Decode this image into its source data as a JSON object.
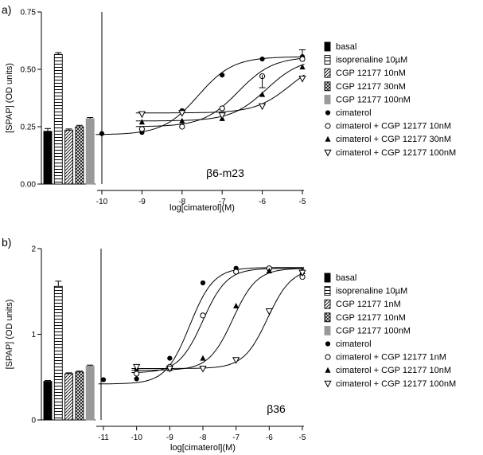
{
  "chart_data": [
    {
      "type": "bar+line",
      "panel_label": "a)",
      "ylabel": "[SPAP] (OD units)",
      "xlabel": "log[cimaterol](M)",
      "annotation": "β6-m23",
      "ylim": [
        0,
        0.75
      ],
      "yticks": [
        "0.00",
        "0.25",
        "0.50",
        "0.75"
      ],
      "xlim": [
        -10,
        -5
      ],
      "xticks": [
        "-10",
        "-9",
        "-8",
        "-7",
        "-6",
        "-5"
      ],
      "bars": [
        {
          "name": "basal",
          "value": 0.23,
          "error": 0.012,
          "pattern": "black"
        },
        {
          "name": "isoprenaline 10µM",
          "value": 0.565,
          "error": 0.008,
          "pattern": "hlines"
        },
        {
          "name": "CGP 12177 10nM",
          "value": 0.235,
          "error": 0.005,
          "pattern": "diag"
        },
        {
          "name": "CGP 12177 30nM",
          "value": 0.25,
          "error": 0.006,
          "pattern": "cross"
        },
        {
          "name": "CGP 12177 100nM",
          "value": 0.285,
          "error": 0.005,
          "pattern": "gray"
        }
      ],
      "series": [
        {
          "name": "cimaterol",
          "marker": "filled-circle",
          "bottom": 0.215,
          "top": 0.555,
          "logEC50": -7.6,
          "hill": 1.0,
          "x": [
            -10,
            -9,
            -8,
            -7,
            -6,
            -5
          ],
          "y": [
            0.22,
            0.225,
            0.32,
            0.475,
            0.545,
            0.555
          ]
        },
        {
          "name": "cimaterol + CGP 12177 10nM",
          "marker": "open-circle",
          "bottom": 0.25,
          "top": 0.555,
          "logEC50": -6.6,
          "hill": 1.0,
          "x": [
            -9,
            -8,
            -7,
            -6,
            -5
          ],
          "y": [
            0.24,
            0.25,
            0.33,
            0.47,
            0.545
          ]
        },
        {
          "name": "cimaterol + CGP 12177 30nM",
          "marker": "filled-triangle",
          "bottom": 0.275,
          "top": 0.55,
          "logEC50": -5.9,
          "hill": 1.0,
          "x": [
            -9,
            -8,
            -7,
            -6,
            -5
          ],
          "y": [
            0.27,
            0.275,
            0.285,
            0.39,
            0.51
          ]
        },
        {
          "name": "cimaterol + CGP 12177 100nM",
          "marker": "open-triangle",
          "bottom": 0.31,
          "top": 0.55,
          "logEC50": -5.3,
          "hill": 1.0,
          "x": [
            -9,
            -8,
            -7,
            -6,
            -5
          ],
          "y": [
            0.305,
            0.31,
            0.3,
            0.34,
            0.46
          ]
        }
      ],
      "legend": [
        "basal",
        "isoprenaline 10µM",
        "CGP 12177 10nM",
        "CGP 12177 30nM",
        "CGP 12177 100nM",
        "cimaterol",
        "cimaterol + CGP 12177 10nM",
        "cimaterol + CGP 12177 30nM",
        "cimaterol + CGP 12177 100nM"
      ]
    },
    {
      "type": "bar+line",
      "panel_label": "b)",
      "ylabel": "[SPAP] (OD units)",
      "xlabel": "log[cimaterol](M)",
      "annotation": "β36",
      "ylim": [
        0,
        2
      ],
      "yticks": [
        "0",
        "1",
        "2"
      ],
      "xlim": [
        -11,
        -5
      ],
      "xticks": [
        "-11",
        "-10",
        "-9",
        "-8",
        "-7",
        "-6",
        "-5"
      ],
      "bars": [
        {
          "name": "basal",
          "value": 0.45,
          "error": 0.01,
          "pattern": "black"
        },
        {
          "name": "isoprenaline 10µM",
          "value": 1.56,
          "error": 0.06,
          "pattern": "hlines"
        },
        {
          "name": "CGP 12177 1nM",
          "value": 0.54,
          "error": 0.01,
          "pattern": "diag"
        },
        {
          "name": "CGP 12177 10nM",
          "value": 0.56,
          "error": 0.01,
          "pattern": "cross"
        },
        {
          "name": "CGP 12177 100nM",
          "value": 0.63,
          "error": 0.01,
          "pattern": "gray"
        }
      ],
      "series": [
        {
          "name": "cimaterol",
          "marker": "filled-circle",
          "bottom": 0.42,
          "top": 1.78,
          "logEC50": -8.4,
          "hill": 1.2,
          "x": [
            -11,
            -10,
            -9,
            -8,
            -7,
            -6,
            -5
          ],
          "y": [
            0.47,
            0.48,
            0.72,
            1.6,
            1.77,
            1.76,
            1.73
          ]
        },
        {
          "name": "cimaterol + CGP 12177 1nM",
          "marker": "open-circle",
          "bottom": 0.55,
          "top": 1.77,
          "logEC50": -8.0,
          "hill": 1.2,
          "x": [
            -10,
            -9,
            -8,
            -7,
            -6,
            -5
          ],
          "y": [
            0.54,
            0.62,
            1.22,
            1.73,
            1.77,
            1.67
          ]
        },
        {
          "name": "cimaterol + CGP 12177 10nM",
          "marker": "filled-triangle",
          "bottom": 0.58,
          "top": 1.77,
          "logEC50": -7.1,
          "hill": 1.2,
          "x": [
            -10,
            -9,
            -8,
            -7,
            -6,
            -5
          ],
          "y": [
            0.6,
            0.6,
            0.72,
            1.33,
            1.74,
            1.73
          ]
        },
        {
          "name": "cimaterol + CGP 12177 100nM",
          "marker": "open-triangle",
          "bottom": 0.6,
          "top": 1.77,
          "logEC50": -6.05,
          "hill": 1.2,
          "x": [
            -10,
            -9,
            -8,
            -7,
            -6,
            -5
          ],
          "y": [
            0.62,
            0.6,
            0.6,
            0.7,
            1.27,
            1.72
          ]
        }
      ],
      "legend": [
        "basal",
        "isoprenaline 10µM",
        "CGP 12177 1nM",
        "CGP 12177 10nM",
        "CGP 12177 100nM",
        "cimaterol",
        "cimaterol + CGP 12177 1nM",
        "cimaterol + CGP 12177 10nM",
        "cimaterol + CGP 12177 100nM"
      ]
    }
  ]
}
